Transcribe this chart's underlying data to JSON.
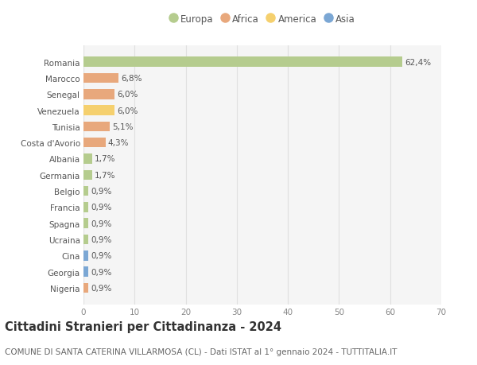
{
  "countries": [
    "Romania",
    "Marocco",
    "Senegal",
    "Venezuela",
    "Tunisia",
    "Costa d'Avorio",
    "Albania",
    "Germania",
    "Belgio",
    "Francia",
    "Spagna",
    "Ucraina",
    "Cina",
    "Georgia",
    "Nigeria"
  ],
  "values": [
    62.4,
    6.8,
    6.0,
    6.0,
    5.1,
    4.3,
    1.7,
    1.7,
    0.9,
    0.9,
    0.9,
    0.9,
    0.9,
    0.9,
    0.9
  ],
  "labels": [
    "62,4%",
    "6,8%",
    "6,0%",
    "6,0%",
    "5,1%",
    "4,3%",
    "1,7%",
    "1,7%",
    "0,9%",
    "0,9%",
    "0,9%",
    "0,9%",
    "0,9%",
    "0,9%",
    "0,9%"
  ],
  "continents": [
    "Europa",
    "Africa",
    "Africa",
    "America",
    "Africa",
    "Africa",
    "Europa",
    "Europa",
    "Europa",
    "Europa",
    "Europa",
    "Europa",
    "Asia",
    "Asia",
    "Africa"
  ],
  "continent_colors": {
    "Europa": "#b5cc8e",
    "Africa": "#e8a87c",
    "America": "#f5d06e",
    "Asia": "#7ba7d4"
  },
  "legend_order": [
    "Europa",
    "Africa",
    "America",
    "Asia"
  ],
  "title": "Cittadini Stranieri per Cittadinanza - 2024",
  "subtitle": "COMUNE DI SANTA CATERINA VILLARMOSA (CL) - Dati ISTAT al 1° gennaio 2024 - TUTTITALIA.IT",
  "xlim": [
    0,
    70
  ],
  "xticks": [
    0,
    10,
    20,
    30,
    40,
    50,
    60,
    70
  ],
  "bg_color": "#ffffff",
  "plot_bg_color": "#f5f5f5",
  "grid_color": "#e0e0e0",
  "bar_height": 0.62,
  "title_fontsize": 10.5,
  "subtitle_fontsize": 7.5,
  "label_fontsize": 7.5,
  "tick_fontsize": 7.5,
  "legend_fontsize": 8.5
}
